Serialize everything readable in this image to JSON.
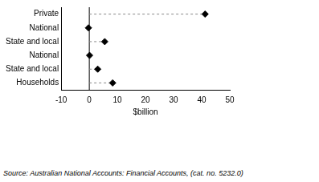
{
  "chart_data": {
    "type": "dot",
    "orientation": "horizontal",
    "categories": [
      "Private",
      "National",
      "State and local",
      "National",
      "State and local",
      "Households"
    ],
    "values": [
      41.2,
      -0.3,
      5.5,
      0.1,
      3.0,
      8.3
    ],
    "color": "#000000",
    "marker": "diamond",
    "line_style": "dashed",
    "xlabel": "$billion",
    "xlim": [
      -10,
      50
    ],
    "xticks": [
      -10,
      0,
      10,
      20,
      30,
      40,
      50
    ],
    "grid": false,
    "caption": "Source: Australian National Accounts: Financial Accounts, (cat. no. 5232.0)"
  }
}
